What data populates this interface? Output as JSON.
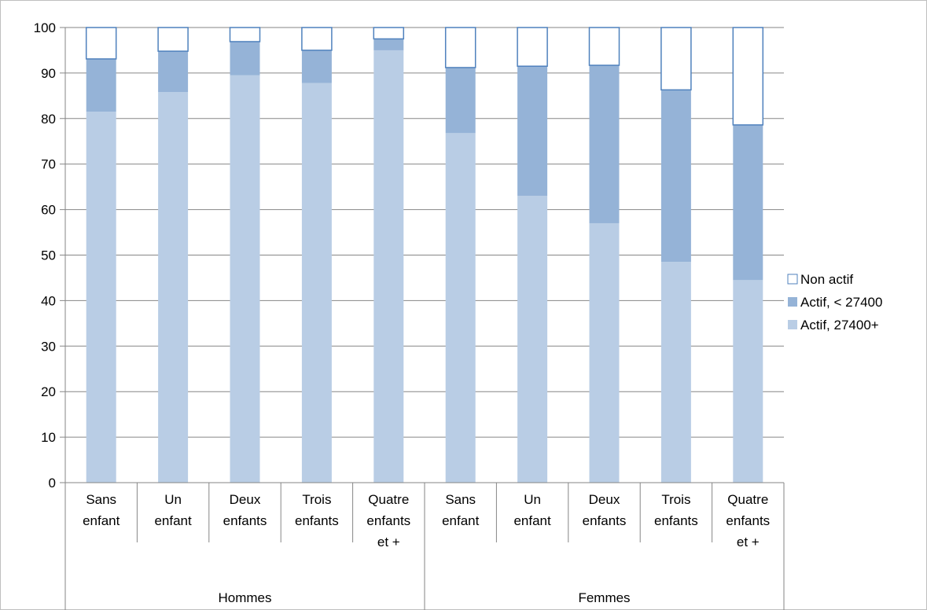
{
  "chart_data": {
    "type": "bar",
    "stacked": true,
    "title": "",
    "xlabel": "",
    "ylabel": "",
    "ylim": [
      0,
      100
    ],
    "yticks": [
      0,
      10,
      20,
      30,
      40,
      50,
      60,
      70,
      80,
      90,
      100
    ],
    "grid": true,
    "legend_position": "right",
    "groups": [
      {
        "label": "Hommes",
        "categories": [
          [
            "Sans",
            "enfant"
          ],
          [
            "Un",
            "enfant"
          ],
          [
            "Deux",
            "enfants"
          ],
          [
            "Trois",
            "enfants"
          ],
          [
            "Quatre",
            "enfants",
            "et +"
          ]
        ]
      },
      {
        "label": "Femmes",
        "categories": [
          [
            "Sans",
            "enfant"
          ],
          [
            "Un",
            "enfant"
          ],
          [
            "Deux",
            "enfants"
          ],
          [
            "Trois",
            "enfants"
          ],
          [
            "Quatre",
            "enfants",
            "et +"
          ]
        ]
      }
    ],
    "series": [
      {
        "name": "Actif, 27400+",
        "color": "#b9cde5",
        "values": [
          81.5,
          85.8,
          89.5,
          87.8,
          95.0,
          76.8,
          63.0,
          57.0,
          48.5,
          44.5
        ]
      },
      {
        "name": "Actif, < 27400",
        "color": "#95b3d7",
        "values": [
          11.6,
          9.0,
          7.4,
          7.2,
          2.5,
          14.4,
          28.5,
          34.7,
          37.8,
          34.1
        ]
      },
      {
        "name": "Non actif",
        "color": "#ffffff",
        "border": "#4f81bd",
        "values": [
          6.9,
          5.2,
          3.1,
          5.0,
          2.5,
          8.8,
          8.5,
          8.3,
          13.7,
          21.4
        ]
      }
    ],
    "legend_order": [
      "Non actif",
      "Actif, < 27400",
      "Actif, 27400+"
    ]
  }
}
